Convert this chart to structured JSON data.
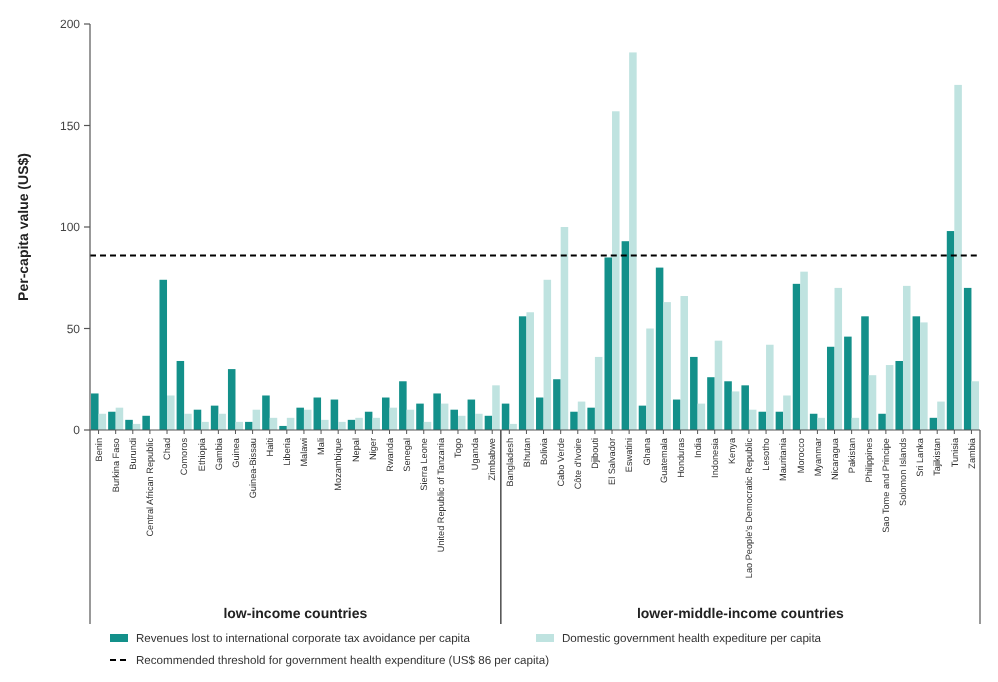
{
  "chart_data": [
    {
      "type": "bar",
      "ylabel": "Per-capita value (US$)",
      "xlabel": "low-income countries",
      "categories": [
        "Benin",
        "Burkina Faso",
        "Burundi",
        "Central African Republic",
        "Chad",
        "Comoros",
        "Ethiopia",
        "Gambia",
        "Guinea",
        "Guinea-Bissau",
        "Haiti",
        "Liberia",
        "Malawi",
        "Mali",
        "Mozambique",
        "Nepal",
        "Niger",
        "Rwanda",
        "Senegal",
        "Sierra Leone",
        "United Republic of Tanzania",
        "Togo",
        "Uganda",
        "Zimbabwe"
      ],
      "series": [
        {
          "name": "Revenues lost to international corporate tax avoidance per capita",
          "color": "#13908a",
          "values": [
            18,
            9,
            5,
            7,
            74,
            34,
            10,
            12,
            30,
            4,
            17,
            2,
            11,
            16,
            15,
            5,
            9,
            16,
            24,
            13,
            18,
            10,
            15,
            7
          ]
        },
        {
          "name": "Domestic government health expediture per capita",
          "color": "#bfe3e0",
          "values": [
            8,
            11,
            3,
            null,
            17,
            8,
            4,
            8,
            4,
            10,
            6,
            6,
            10,
            5,
            4,
            6,
            6,
            11,
            10,
            4,
            13,
            7,
            8,
            22
          ]
        }
      ],
      "ylim": [
        0,
        200
      ],
      "yticks": [
        0,
        50,
        100,
        150,
        200
      ],
      "ref_lines": [
        {
          "axis": "y",
          "value": 86,
          "label": "Recommended threshold for government health expenditure (US$ 86 per capita)",
          "color": "#000000",
          "line_style": "dashed"
        }
      ],
      "grid": false,
      "legend": "bottom"
    },
    {
      "type": "bar",
      "xlabel": "lower-middle-income countries",
      "categories": [
        "Bangladesh",
        "Bhutan",
        "Bolivia",
        "Cabo Verde",
        "Côte d'Ivoire",
        "Djibouti",
        "El Salvador",
        "Eswatini",
        "Ghana",
        "Guatemala",
        "Honduras",
        "India",
        "Indonesia",
        "Kenya",
        "Lao People's Democratic Republic",
        "Lesotho",
        "Mauritania",
        "Morocco",
        "Myanmar",
        "Nicaragua",
        "Pakistan",
        "Philippines",
        "Sao Tome and Principe",
        "Solomon Islands",
        "Sri Lanka",
        "Tajikistan",
        "Tunisia",
        "Zambia"
      ],
      "series": [
        {
          "color": "#13908a",
          "values": [
            13,
            56,
            16,
            25,
            9,
            11,
            85,
            93,
            12,
            80,
            15,
            36,
            26,
            24,
            22,
            9,
            9,
            72,
            8,
            41,
            46,
            56,
            8,
            34,
            56,
            6,
            98,
            70
          ]
        },
        {
          "color": "#bfe3e0",
          "values": [
            3,
            58,
            74,
            100,
            14,
            36,
            157,
            186,
            50,
            63,
            66,
            13,
            44,
            19,
            10,
            42,
            17,
            78,
            6,
            70,
            6,
            27,
            32,
            71,
            53,
            14,
            170,
            24
          ]
        }
      ],
      "ylim": [
        0,
        200
      ],
      "yticks": [
        0,
        50,
        100,
        150,
        200
      ],
      "tick_labels": "x",
      "ref_lines": [
        {
          "axis": "y",
          "value": 86,
          "color": "#000000",
          "line_style": "dashed"
        }
      ],
      "grid": false
    }
  ]
}
